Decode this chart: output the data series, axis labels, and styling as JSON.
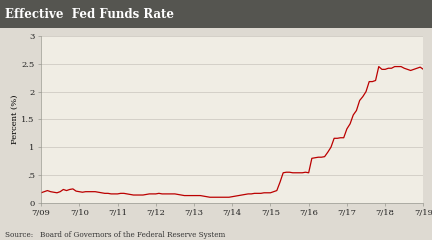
{
  "title": "Effective  Fed Funds Rate",
  "ylabel": "Percent (%)",
  "source_text": "Source:   Board of Governors of the Federal Reserve System",
  "line_color": "#bb0000",
  "background_color": "#dedad2",
  "title_bg_color": "#555550",
  "title_text_color": "#ffffff",
  "plot_bg_color": "#f0ede4",
  "grid_color": "#c8c4bc",
  "ylim": [
    0,
    3.0
  ],
  "yticks": [
    0,
    0.5,
    1.0,
    1.5,
    2.0,
    2.5,
    3.0
  ],
  "ytick_labels": [
    "0",
    ".5",
    "1",
    "1.5",
    "2",
    "2.5",
    "3"
  ],
  "x_labels": [
    "7/09",
    "7/10",
    "7/11",
    "7/12",
    "7/13",
    "7/14",
    "7/15",
    "7/16",
    "7/17",
    "7/18",
    "7/19"
  ],
  "x_positions": [
    0,
    12,
    24,
    36,
    48,
    60,
    72,
    84,
    96,
    108,
    120
  ],
  "data_x": [
    0,
    1,
    2,
    3,
    4,
    5,
    6,
    7,
    8,
    9,
    10,
    11,
    12,
    13,
    14,
    15,
    16,
    17,
    18,
    19,
    20,
    21,
    22,
    23,
    24,
    25,
    26,
    27,
    28,
    29,
    30,
    31,
    32,
    33,
    34,
    35,
    36,
    37,
    38,
    39,
    40,
    41,
    42,
    43,
    44,
    45,
    46,
    47,
    48,
    49,
    50,
    51,
    52,
    53,
    54,
    55,
    56,
    57,
    58,
    59,
    60,
    61,
    62,
    63,
    64,
    65,
    66,
    67,
    68,
    69,
    70,
    71,
    72,
    73,
    74,
    75,
    76,
    77,
    78,
    79,
    80,
    81,
    82,
    83,
    84,
    85,
    86,
    87,
    88,
    89,
    90,
    91,
    92,
    93,
    94,
    95,
    96,
    97,
    98,
    99,
    100,
    101,
    102,
    103,
    104,
    105,
    106,
    107,
    108,
    109,
    110,
    111,
    112,
    113,
    114,
    115,
    116,
    117,
    118,
    119,
    120
  ],
  "data_y": [
    0.18,
    0.2,
    0.22,
    0.2,
    0.19,
    0.18,
    0.2,
    0.24,
    0.22,
    0.24,
    0.25,
    0.21,
    0.2,
    0.19,
    0.2,
    0.2,
    0.2,
    0.2,
    0.19,
    0.18,
    0.17,
    0.17,
    0.16,
    0.16,
    0.16,
    0.17,
    0.17,
    0.16,
    0.15,
    0.14,
    0.14,
    0.14,
    0.14,
    0.15,
    0.16,
    0.16,
    0.16,
    0.17,
    0.16,
    0.16,
    0.16,
    0.16,
    0.16,
    0.15,
    0.14,
    0.13,
    0.13,
    0.13,
    0.13,
    0.13,
    0.13,
    0.12,
    0.11,
    0.1,
    0.1,
    0.1,
    0.1,
    0.1,
    0.1,
    0.1,
    0.11,
    0.12,
    0.13,
    0.14,
    0.15,
    0.16,
    0.16,
    0.17,
    0.17,
    0.17,
    0.18,
    0.18,
    0.18,
    0.2,
    0.22,
    0.37,
    0.54,
    0.55,
    0.55,
    0.54,
    0.54,
    0.54,
    0.54,
    0.55,
    0.54,
    0.8,
    0.81,
    0.82,
    0.82,
    0.83,
    0.91,
    1.0,
    1.16,
    1.16,
    1.17,
    1.17,
    1.33,
    1.42,
    1.58,
    1.66,
    1.84,
    1.91,
    2.0,
    2.18,
    2.18,
    2.2,
    2.45,
    2.4,
    2.4,
    2.42,
    2.42,
    2.45,
    2.45,
    2.45,
    2.42,
    2.4,
    2.38,
    2.4,
    2.42,
    2.44,
    2.4
  ]
}
